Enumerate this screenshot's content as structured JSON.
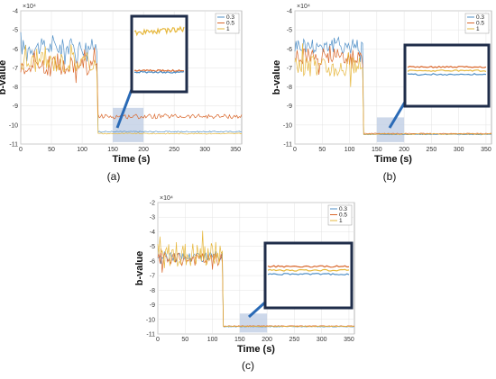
{
  "chart_data": [
    {
      "type": "line",
      "panel_label": "(a)",
      "xlabel": "Time (s)",
      "ylabel": "b-value",
      "exponent_label": "×10⁴",
      "xlim": [
        0,
        360
      ],
      "ylim": [
        -11,
        -4
      ],
      "xticks": [
        0,
        50,
        100,
        150,
        200,
        250,
        300,
        350
      ],
      "yticks": [
        -4,
        -5,
        -6,
        -7,
        -8,
        -9,
        -10,
        -11
      ],
      "grid": true,
      "legend_position": "inset top-right",
      "highlight_x": [
        150,
        200
      ],
      "inset_order": [
        "1",
        "0.5",
        "0.3"
      ],
      "series": [
        {
          "name": "0.3",
          "color": "#4f8fc7",
          "pre_level": -5.9,
          "pre_noise": 0.45,
          "post_level": -10.35,
          "post_noise": 0.03
        },
        {
          "name": "0.5",
          "color": "#d9662a",
          "pre_level": -6.9,
          "pre_noise": 0.5,
          "post_level": -9.55,
          "post_noise": 0.12
        },
        {
          "name": "1",
          "color": "#e6b73c",
          "pre_level": -6.7,
          "pre_noise": 0.55,
          "post_level": -10.45,
          "post_noise": 0.03
        }
      ],
      "step_time": 125
    },
    {
      "type": "line",
      "panel_label": "(b)",
      "xlabel": "Time (s)",
      "ylabel": "b-value",
      "exponent_label": "×10⁴",
      "xlim": [
        0,
        360
      ],
      "ylim": [
        -11,
        -4
      ],
      "xticks": [
        0,
        50,
        100,
        150,
        200,
        250,
        300,
        350
      ],
      "yticks": [
        -4,
        -5,
        -6,
        -7,
        -8,
        -9,
        -10,
        -11
      ],
      "grid": true,
      "legend_position": "inset top-right",
      "highlight_x": [
        150,
        200
      ],
      "inset_order": [
        "0.5",
        "1",
        "0.3"
      ],
      "series": [
        {
          "name": "0.3",
          "color": "#4f8fc7",
          "pre_level": -5.8,
          "pre_noise": 0.45,
          "post_level": -10.5,
          "post_noise": 0.02
        },
        {
          "name": "0.5",
          "color": "#d9662a",
          "pre_level": -6.4,
          "pre_noise": 0.45,
          "post_level": -10.45,
          "post_noise": 0.02
        },
        {
          "name": "1",
          "color": "#e6b73c",
          "pre_level": -6.9,
          "pre_noise": 0.55,
          "post_level": -10.48,
          "post_noise": 0.02
        }
      ],
      "step_time": 125
    },
    {
      "type": "line",
      "panel_label": "(c)",
      "xlabel": "Time (s)",
      "ylabel": "b-value",
      "exponent_label": "×10⁴",
      "xlim": [
        0,
        360
      ],
      "ylim": [
        -11,
        -2
      ],
      "xticks": [
        0,
        50,
        100,
        150,
        200,
        250,
        300,
        350
      ],
      "yticks": [
        -2,
        -3,
        -4,
        -5,
        -6,
        -7,
        -8,
        -9,
        -10,
        -11
      ],
      "grid": true,
      "legend_position": "inset top-right",
      "highlight_x": [
        150,
        200
      ],
      "inset_order": [
        "0.5",
        "1",
        "0.3"
      ],
      "series": [
        {
          "name": "0.3",
          "color": "#4f8fc7",
          "pre_level": -5.7,
          "pre_noise": 0.35,
          "post_level": -10.5,
          "post_noise": 0.02
        },
        {
          "name": "0.5",
          "color": "#d9662a",
          "pre_level": -5.9,
          "pre_noise": 0.45,
          "post_level": -10.45,
          "post_noise": 0.02
        },
        {
          "name": "1",
          "color": "#e6b73c",
          "pre_level": -5.6,
          "pre_noise": 0.9,
          "post_level": -10.48,
          "post_noise": 0.02
        }
      ],
      "step_time": 120
    }
  ],
  "colors": {
    "inset_border": "#1f2d4a",
    "arrow": "#2a6ab6",
    "highlight": "#bccbe3"
  }
}
